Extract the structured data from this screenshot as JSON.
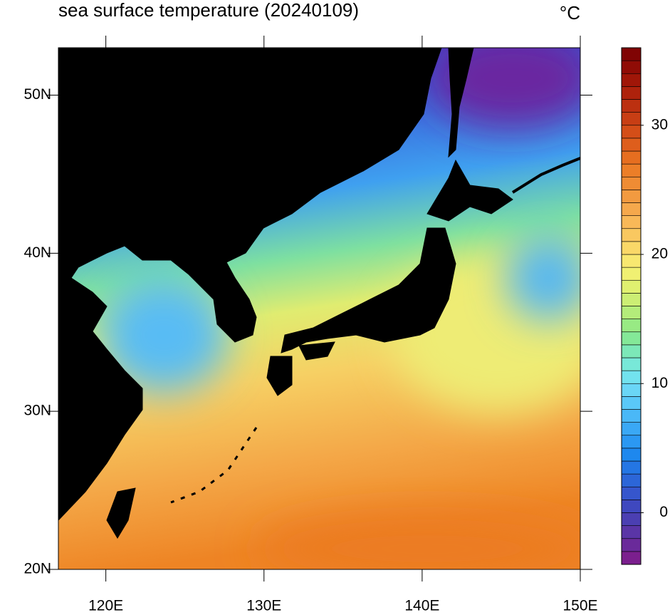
{
  "title": "sea surface temperature (20240109)",
  "units": "°C",
  "map": {
    "xlim": [
      117,
      150
    ],
    "ylim": [
      20,
      53
    ],
    "xticks": [
      {
        "value": 120,
        "label": "120E"
      },
      {
        "value": 130,
        "label": "130E"
      },
      {
        "value": 140,
        "label": "140E"
      },
      {
        "value": 150,
        "label": "150E"
      }
    ],
    "yticks": [
      {
        "value": 20,
        "label": "20N"
      },
      {
        "value": 30,
        "label": "30N"
      },
      {
        "value": 40,
        "label": "40N"
      },
      {
        "value": 50,
        "label": "50N"
      }
    ],
    "land_color": "#000000"
  },
  "colorbar": {
    "lim": [
      -4,
      36
    ],
    "ticks": [
      0,
      10,
      20,
      30
    ],
    "colors": [
      "#7b1f8e",
      "#6a2a9a",
      "#5a35a6",
      "#4b3fb2",
      "#3f48bf",
      "#3656cc",
      "#2c66d8",
      "#2476e4",
      "#1e88ee",
      "#2b98f2",
      "#3aa8f5",
      "#4ab8f7",
      "#5ac8f8",
      "#6ad6f6",
      "#72e2ee",
      "#78e8d8",
      "#7ce8b8",
      "#84e898",
      "#98ea84",
      "#b4ec7a",
      "#ccee74",
      "#e0f070",
      "#f0f072",
      "#f8e870",
      "#fad868",
      "#f9c860",
      "#f8b858",
      "#f5a84c",
      "#f29a40",
      "#ef8c34",
      "#ec7e28",
      "#e66e20",
      "#de5e1c",
      "#d44e18",
      "#c83e14",
      "#bc3010",
      "#ae220c",
      "#a01608",
      "#900c06",
      "#800404"
    ]
  }
}
